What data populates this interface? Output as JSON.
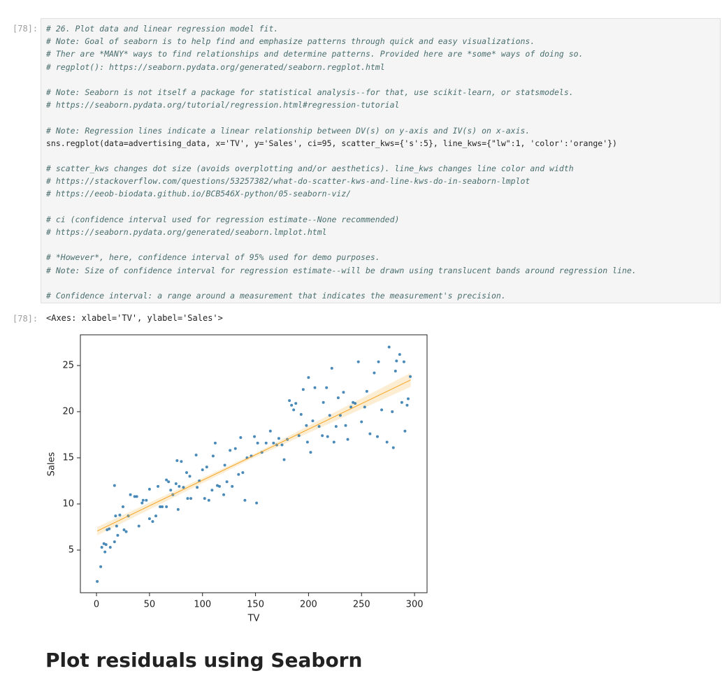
{
  "cell": {
    "prompt": "[78]:",
    "code_blocks": [
      [
        "# 26. Plot data and linear regression model fit.",
        "# Note: Goal of seaborn is to help find and emphasize patterns through quick and easy visualizations.",
        "# Ther are *MANY* ways to find relationships and determine patterns. Provided here are *some* ways of doing so.",
        "# regplot(): https://seaborn.pydata.org/generated/seaborn.regplot.html"
      ],
      [
        "# Note: Seaborn is not itself a package for statistical analysis--for that, use scikit-learn, or statsmodels.",
        "# https://seaborn.pydata.org/tutorial/regression.html#regression-tutorial"
      ],
      [
        "# Note: Regression lines indicate a linear relationship between DV(s) on y-axis and IV(s) on x-axis.",
        "sns.regplot(data=advertising_data, x='TV', y='Sales', ci=95, scatter_kws={'s':5}, line_kws={\"lw\":1, 'color':'orange'})"
      ],
      [
        "# scatter_kws changes dot size (avoids overplotting and/or aesthetics). line_kws changes line color and width",
        "# https://stackoverflow.com/questions/53257382/what-do-scatter-kws-and-line-kws-do-in-seaborn-lmplot",
        "# https://eeob-biodata.github.io/BCB546X-python/05-seaborn-viz/"
      ],
      [
        "# ci (confidence interval used for regression estimate--None recommended)",
        "# https://seaborn.pydata.org/generated/seaborn.lmplot.html"
      ],
      [
        "# *However*, here, confidence interval of 95% used for demo purposes.",
        "# Note: Size of confidence interval for regression estimate--will be drawn using translucent bands around regression line."
      ],
      [
        "# Confidence interval: a range around a measurement that indicates the measurement's precision."
      ]
    ]
  },
  "output": {
    "prompt": "[78]:",
    "text": "<Axes: xlabel='TV', ylabel='Sales'>"
  },
  "chart_data": {
    "type": "scatter",
    "x_label": "TV",
    "y_label": "Sales",
    "color": "#2a75ad",
    "line_color": "#f5a623",
    "x": [
      0.7,
      4,
      5,
      7,
      8,
      9,
      10,
      12,
      13,
      17,
      18,
      17,
      19,
      20,
      22,
      25,
      26,
      28,
      30,
      32,
      36,
      38,
      40,
      43,
      44,
      47,
      50,
      50,
      53,
      56,
      58,
      60,
      62,
      66,
      66,
      68,
      70,
      72,
      75,
      76,
      77,
      78,
      80,
      82,
      85,
      86,
      88,
      89,
      94,
      95,
      97,
      100,
      102,
      104,
      106,
      109,
      110,
      112,
      114,
      116,
      120,
      121,
      123,
      126,
      128,
      131,
      134,
      136,
      138,
      140,
      142,
      146,
      149,
      151,
      152,
      156,
      160,
      164,
      167,
      170,
      172,
      175,
      177,
      180,
      182,
      184,
      186,
      188,
      191,
      193,
      195,
      198,
      199,
      200,
      202,
      204,
      206,
      210,
      213,
      214,
      217,
      218,
      220,
      222,
      224,
      226,
      228,
      230,
      233,
      235,
      237,
      240,
      242,
      244,
      247,
      250,
      253,
      255,
      258,
      262,
      265,
      266,
      269,
      274,
      276,
      279,
      280,
      282,
      283,
      286,
      288,
      290,
      291,
      293,
      294,
      296
    ],
    "values": [
      1.6,
      3.2,
      5.3,
      5.7,
      4.8,
      5.6,
      7.2,
      7.3,
      5.3,
      5.9,
      8.7,
      12.0,
      7.6,
      6.6,
      8.8,
      9.7,
      7.2,
      7.0,
      8.7,
      11.0,
      10.8,
      10.8,
      7.6,
      10.1,
      10.4,
      10.4,
      11.6,
      8.4,
      8.1,
      8.7,
      11.9,
      9.7,
      9.7,
      12.6,
      9.7,
      12.4,
      11.5,
      11.0,
      12.2,
      14.7,
      9.4,
      11.9,
      14.6,
      11.8,
      13.4,
      10.6,
      13.0,
      10.6,
      15.3,
      11.8,
      12.5,
      13.7,
      10.6,
      14.0,
      10.4,
      11.5,
      15.2,
      16.6,
      12.0,
      11.9,
      11.0,
      14.2,
      12.4,
      15.8,
      11.9,
      16.0,
      13.2,
      17.2,
      13.4,
      10.4,
      15.0,
      15.2,
      17.3,
      10.1,
      16.6,
      15.6,
      16.6,
      17.9,
      16.6,
      16.4,
      17.1,
      16.4,
      14.8,
      17.0,
      21.2,
      20.7,
      20.2,
      20.9,
      17.4,
      19.7,
      22.4,
      18.5,
      16.7,
      23.7,
      15.6,
      19.0,
      22.6,
      18.4,
      17.4,
      21.0,
      22.6,
      17.3,
      19.6,
      24.7,
      16.7,
      18.4,
      21.5,
      19.6,
      22.1,
      18.5,
      17.0,
      20.5,
      21.0,
      20.9,
      25.4,
      18.9,
      20.5,
      22.2,
      17.6,
      24.2,
      17.3,
      25.4,
      20.2,
      16.7,
      27.0,
      20.0,
      16.1,
      24.4,
      25.5,
      26.2,
      21.0,
      25.4,
      17.9,
      20.7,
      21.4,
      23.8
    ],
    "regression": {
      "x": [
        0.7,
        296.4
      ],
      "y": [
        7.07,
        23.44
      ]
    },
    "band": {
      "x": [
        0.7,
        150,
        296.4
      ],
      "lower": [
        6.6,
        15.1,
        22.7
      ],
      "upper": [
        7.5,
        15.5,
        24.2
      ]
    },
    "xlim": [
      -15.2,
      311.8
    ],
    "ylim": [
      0.38,
      28.33
    ],
    "xticks": [
      0,
      50,
      100,
      150,
      200,
      250,
      300
    ],
    "yticks": [
      5,
      10,
      15,
      20,
      25
    ]
  },
  "heading": "Plot residuals using Seaborn"
}
